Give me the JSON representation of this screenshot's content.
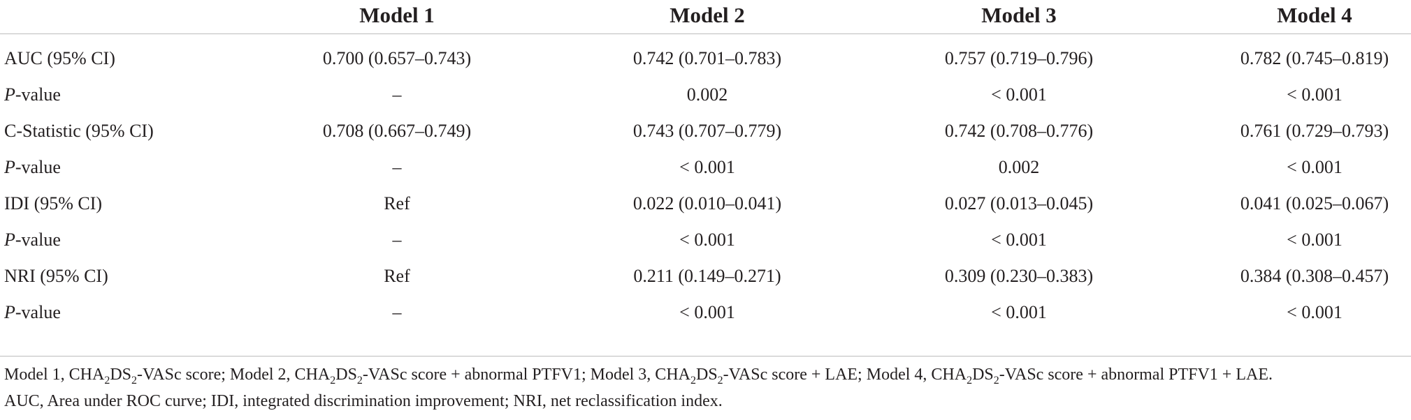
{
  "table": {
    "headers": [
      "Model 1",
      "Model 2",
      "Model 3",
      "Model 4"
    ],
    "rows": [
      {
        "label": "AUC (95% CI)",
        "italic_prefix": "",
        "label_rest": "",
        "values": [
          "0.700 (0.657–0.743)",
          "0.742 (0.701–0.783)",
          "0.757 (0.719–0.796)",
          "0.782 (0.745–0.819)"
        ]
      },
      {
        "label": "",
        "italic_prefix": "P",
        "label_rest": "-value",
        "values": [
          "–",
          "0.002",
          "< 0.001",
          "< 0.001"
        ]
      },
      {
        "label": "C-Statistic (95% CI)",
        "italic_prefix": "",
        "label_rest": "",
        "values": [
          "0.708 (0.667–0.749)",
          "0.743 (0.707–0.779)",
          "0.742 (0.708–0.776)",
          "0.761 (0.729–0.793)"
        ]
      },
      {
        "label": "",
        "italic_prefix": "P",
        "label_rest": "-value",
        "values": [
          "–",
          "< 0.001",
          "0.002",
          "< 0.001"
        ]
      },
      {
        "label": "IDI (95% CI)",
        "italic_prefix": "",
        "label_rest": "",
        "values": [
          "Ref",
          "0.022 (0.010–0.041)",
          "0.027 (0.013–0.045)",
          "0.041 (0.025–0.067)"
        ]
      },
      {
        "label": "",
        "italic_prefix": "P",
        "label_rest": "-value",
        "values": [
          "–",
          "< 0.001",
          "< 0.001",
          "< 0.001"
        ]
      },
      {
        "label": "NRI (95% CI)",
        "italic_prefix": "",
        "label_rest": "",
        "values": [
          "Ref",
          "0.211 (0.149–0.271)",
          "0.309 (0.230–0.383)",
          "0.384 (0.308–0.457)"
        ]
      },
      {
        "label": "",
        "italic_prefix": "P",
        "label_rest": "-value",
        "values": [
          "–",
          "< 0.001",
          "< 0.001",
          "< 0.001"
        ]
      }
    ]
  },
  "footnote": {
    "line1": [
      "Model 1, CHA",
      "2",
      "DS",
      "2",
      "-VASc score; Model 2, CHA",
      "2",
      "DS",
      "2",
      "-VASc score + abnormal PTFV1; Model 3, CHA",
      "2",
      "DS",
      "2",
      "-VASc score + LAE; Model 4, CHA",
      "2",
      "DS",
      "2",
      "-VASc score + abnormal PTFV1 + LAE."
    ],
    "line2": "AUC, Area under ROC curve; IDI, integrated discrimination improvement; NRI, net reclassification index."
  },
  "colors": {
    "text": "#231f20",
    "rule": "#bcbcbc"
  }
}
